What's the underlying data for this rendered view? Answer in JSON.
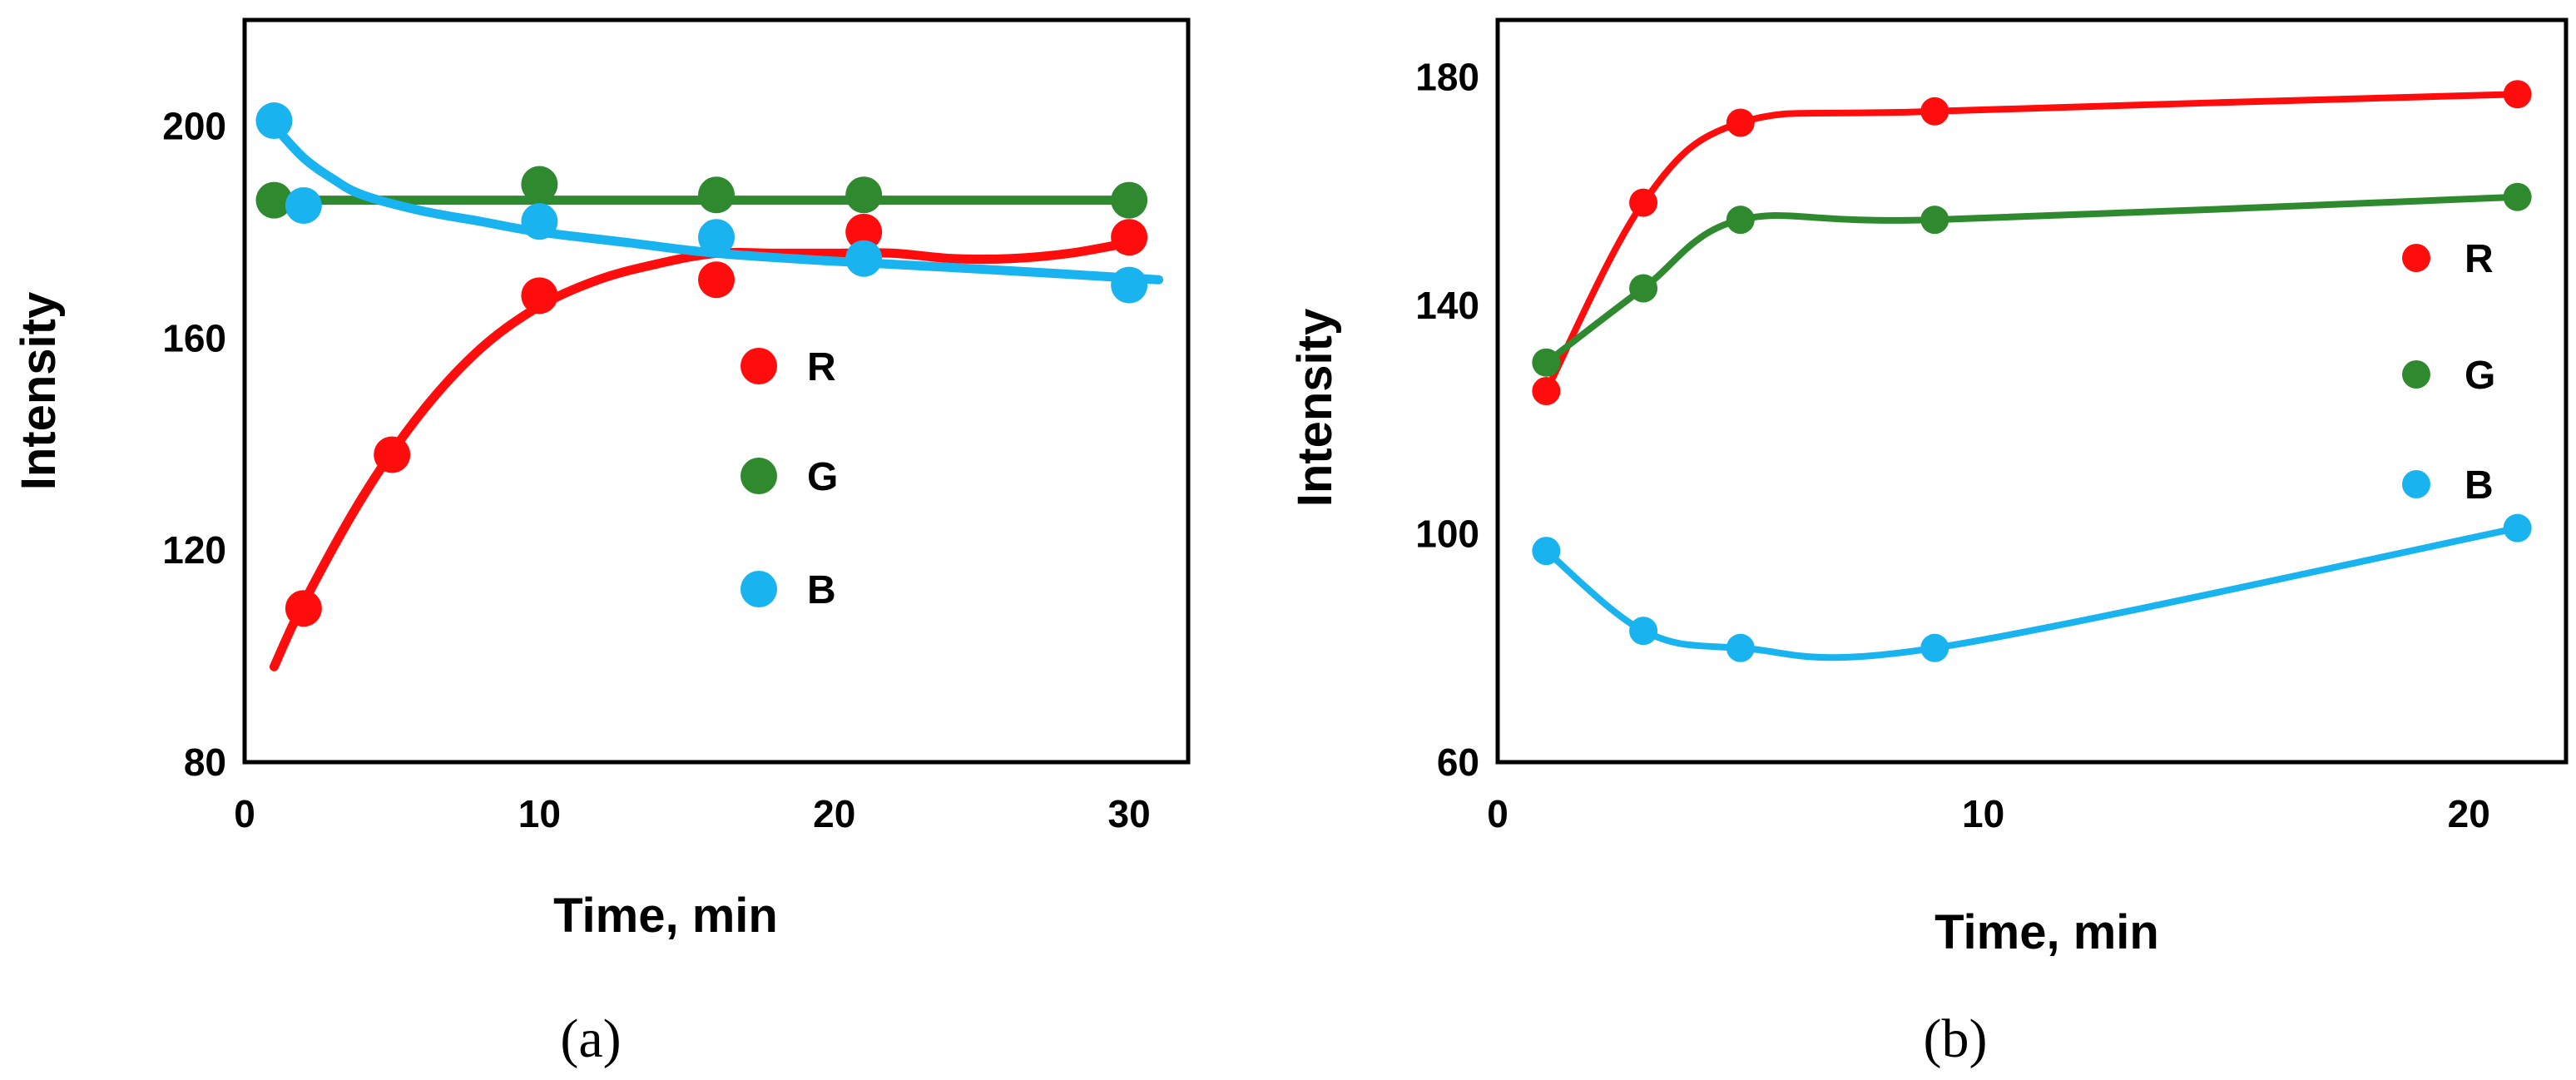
{
  "chart_data": [
    {
      "type": "scatter",
      "panel_label": "(a)",
      "xlabel": "Time, min",
      "ylabel": "Intensity",
      "xlim": [
        0,
        32
      ],
      "ylim": [
        80,
        220
      ],
      "xticks": [
        "0",
        "10",
        "20",
        "30"
      ],
      "yticks": [
        "80",
        "120",
        "160",
        "200"
      ],
      "legend_position": "center-right",
      "series": [
        {
          "name": "R",
          "color": "#ff0d0d",
          "points": [
            [
              2,
              109
            ],
            [
              5,
              138
            ],
            [
              10,
              168
            ],
            [
              16,
              171
            ],
            [
              21,
              180
            ],
            [
              30,
              179
            ]
          ],
          "trend": [
            [
              1,
              98
            ],
            [
              2,
              110
            ],
            [
              4,
              130
            ],
            [
              6,
              146
            ],
            [
              8,
              158
            ],
            [
              10,
              166
            ],
            [
              12,
              171
            ],
            [
              14,
              174
            ],
            [
              16,
              176
            ],
            [
              18,
              176
            ],
            [
              20,
              176
            ],
            [
              22,
              176
            ],
            [
              24,
              175
            ],
            [
              26,
              175
            ],
            [
              28,
              176
            ],
            [
              30,
              178
            ]
          ]
        },
        {
          "name": "G",
          "color": "#2f8a2f",
          "points": [
            [
              1,
              186
            ],
            [
              10,
              189
            ],
            [
              16,
              187
            ],
            [
              21,
              187
            ],
            [
              30,
              186
            ]
          ],
          "trend": [
            [
              1,
              186
            ],
            [
              30,
              186
            ]
          ]
        },
        {
          "name": "B",
          "color": "#19b4ef",
          "points": [
            [
              1,
              201
            ],
            [
              2,
              185
            ],
            [
              10,
              182
            ],
            [
              16,
              179
            ],
            [
              21,
              175
            ],
            [
              30,
              170
            ]
          ],
          "trend": [
            [
              1,
              200
            ],
            [
              2,
              194
            ],
            [
              3,
              190
            ],
            [
              4,
              187
            ],
            [
              6,
              184
            ],
            [
              8,
              182
            ],
            [
              10,
              180
            ],
            [
              13,
              178
            ],
            [
              16,
              176
            ],
            [
              20,
              174.5
            ],
            [
              25,
              173
            ],
            [
              31,
              171
            ]
          ]
        }
      ]
    },
    {
      "type": "line",
      "panel_label": "(b)",
      "xlabel": "Time, min",
      "ylabel": "Intensity",
      "xlim": [
        0,
        22
      ],
      "ylim": [
        60,
        190
      ],
      "xticks": [
        "0",
        "10",
        "20"
      ],
      "yticks": [
        "60",
        "100",
        "140",
        "180"
      ],
      "legend_position": "center-right",
      "series": [
        {
          "name": "R",
          "color": "#ff0d0d",
          "points": [
            [
              1,
              125
            ],
            [
              3,
              158
            ],
            [
              5,
              172
            ],
            [
              9,
              174
            ],
            [
              21,
              177
            ]
          ]
        },
        {
          "name": "G",
          "color": "#2f8a2f",
          "points": [
            [
              1,
              130
            ],
            [
              3,
              143
            ],
            [
              5,
              155
            ],
            [
              9,
              155
            ],
            [
              21,
              159
            ]
          ]
        },
        {
          "name": "B",
          "color": "#19b4ef",
          "points": [
            [
              1,
              97
            ],
            [
              3,
              83
            ],
            [
              5,
              80
            ],
            [
              9,
              80
            ],
            [
              21,
              101
            ]
          ]
        }
      ]
    }
  ]
}
